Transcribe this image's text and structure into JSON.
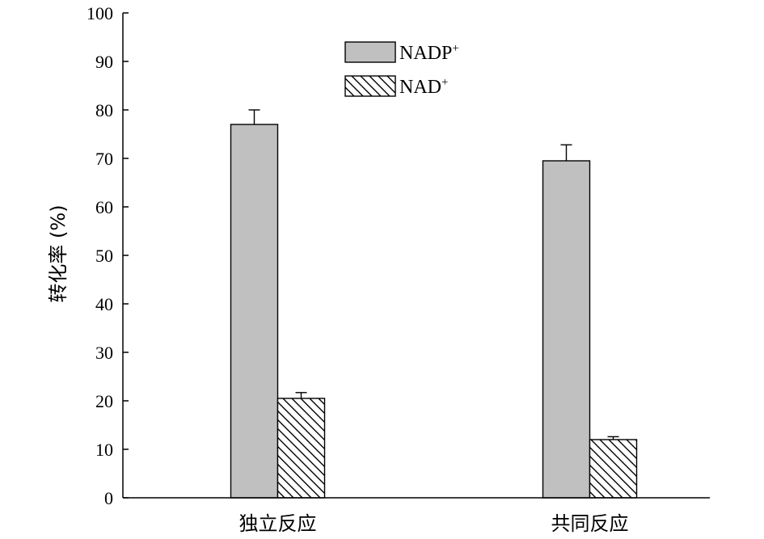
{
  "chart_data": {
    "type": "bar",
    "categories": [
      "独立反应",
      "共同反应"
    ],
    "series": [
      {
        "name": "NADP",
        "name_sup": "+",
        "fill": "#c0c0c0",
        "pattern": "solid",
        "values": [
          77,
          69.5
        ],
        "errors": [
          3,
          3.3
        ]
      },
      {
        "name": "NAD",
        "name_sup": "+",
        "fill": "#ffffff",
        "pattern": "hatch",
        "values": [
          20.5,
          12
        ],
        "errors": [
          1.2,
          0.6
        ]
      }
    ],
    "title": "",
    "xlabel": "",
    "ylabel": "转化率 (%)",
    "ylim": [
      0,
      100
    ],
    "yticks": [
      0,
      10,
      20,
      30,
      40,
      50,
      60,
      70,
      80,
      90,
      100
    ],
    "grid": false,
    "legend_position": "top-center",
    "colors": {
      "axis": "#000000",
      "bar_stroke": "#000000"
    }
  }
}
